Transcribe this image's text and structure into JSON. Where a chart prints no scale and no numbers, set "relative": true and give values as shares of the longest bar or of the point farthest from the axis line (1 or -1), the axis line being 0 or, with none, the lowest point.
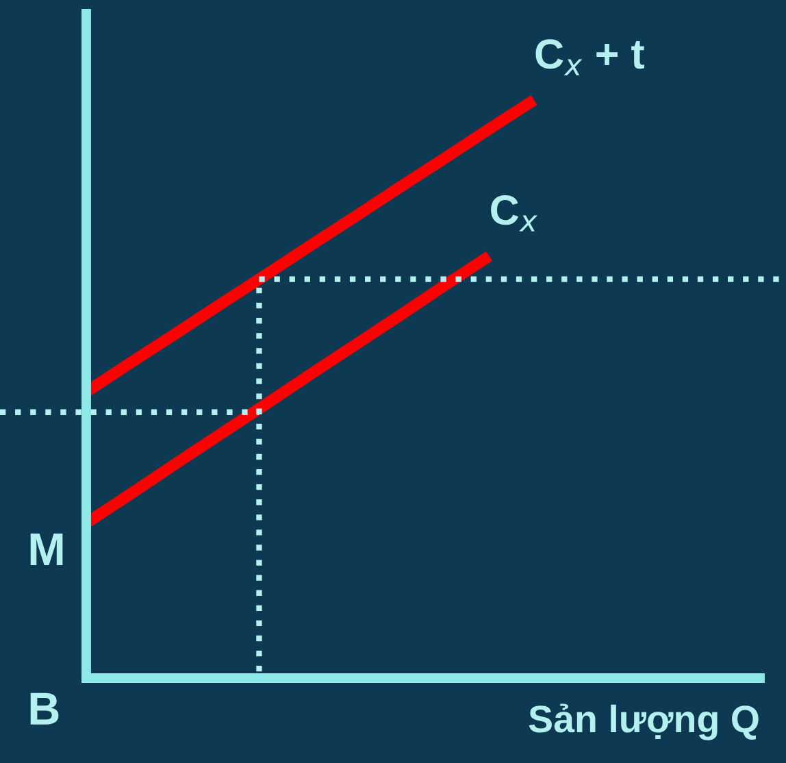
{
  "chart_data": {
    "type": "line",
    "relative": true,
    "xlabel": "Sản lượng Q",
    "line_style": "solid",
    "categories": [
      null,
      null,
      null,
      null,
      null,
      null,
      null,
      null,
      null,
      null,
      null
    ],
    "series": [
      {
        "name": "C$_{x}$ + t",
        "color": "#ff0000",
        "values": [
          0.495,
          0.546,
          0.596,
          0.647,
          0.697,
          0.748,
          0.798,
          0.849,
          0.899,
          0.95,
          1.0
        ]
      },
      {
        "name": "C$_{x}$",
        "color": "#ff0000",
        "values": [
          0.268,
          0.319,
          0.371,
          0.422,
          0.473,
          0.525,
          0.576,
          0.627,
          0.679,
          0.73,
          null
        ]
      }
    ],
    "ref_lines": [
      {
        "axis": "y",
        "value": 0.46,
        "color": "#b5f0f0",
        "line_style": "dotted"
      },
      {
        "axis": "y",
        "value": 0.69,
        "color": "#b5f0f0",
        "line_style": "dotted"
      }
    ],
    "annotations": [
      "M",
      "B"
    ]
  }
}
